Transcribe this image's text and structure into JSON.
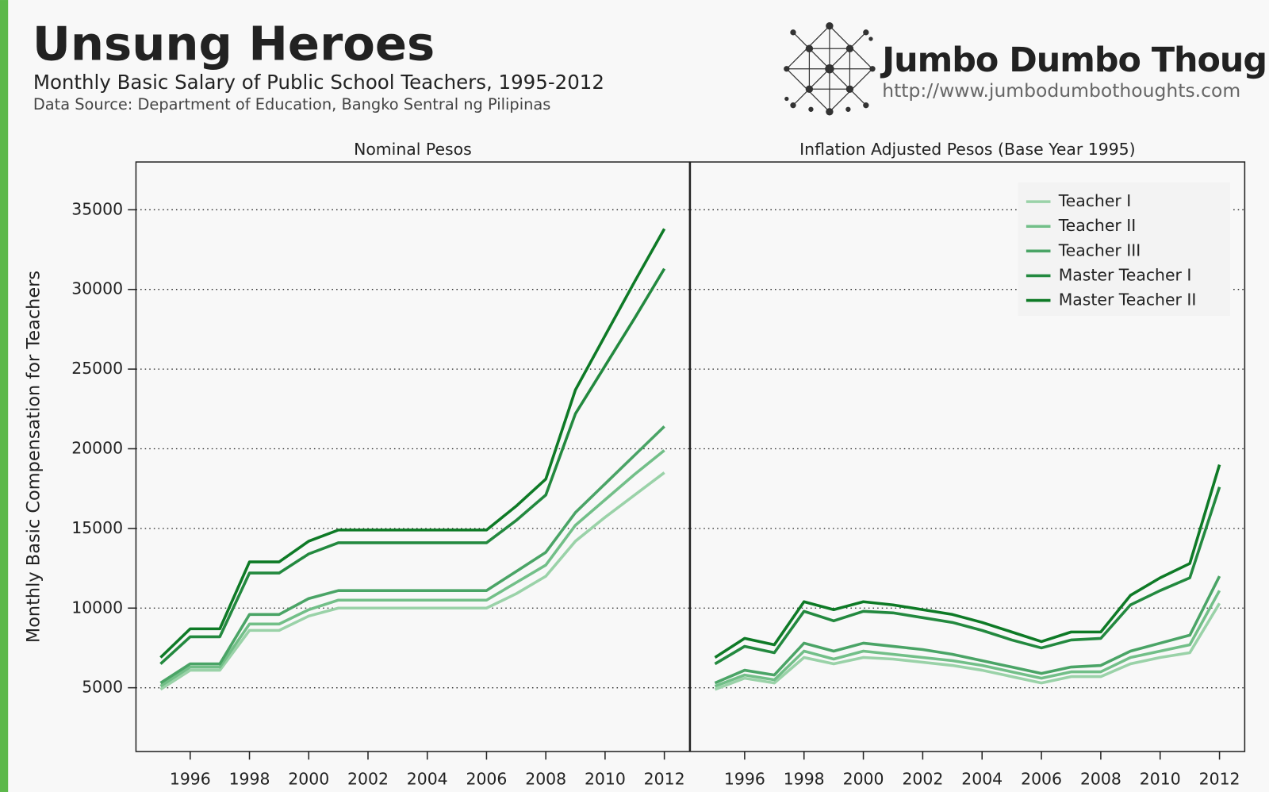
{
  "header": {
    "title": "Unsung Heroes",
    "subtitle": "Monthly Basic Salary of Public School Teachers, 1995-2012",
    "source": "Data Source: Department of Education, Bangko Sentral ng Pilipinas"
  },
  "logo": {
    "name": "Jumbo Dumbo Thoughts",
    "url": "http://www.jumbodumbothoughts.com"
  },
  "chart_data": [
    {
      "type": "line",
      "title": "Nominal Pesos",
      "y_label": "Monthly Basic Compensation for Teachers",
      "x": [
        1995,
        1996,
        1997,
        1998,
        1999,
        2000,
        2001,
        2002,
        2003,
        2004,
        2005,
        2006,
        2007,
        2008,
        2009,
        2010,
        2011,
        2012
      ],
      "series": [
        {
          "name": "Teacher I",
          "color": "#9ad2a8",
          "values": [
            4900,
            6100,
            6100,
            8600,
            8600,
            9500,
            10000,
            10000,
            10000,
            10000,
            10000,
            10000,
            10900,
            12000,
            14200,
            15700,
            17100,
            18500
          ]
        },
        {
          "name": "Teacher II",
          "color": "#72bf88",
          "values": [
            5100,
            6300,
            6300,
            9000,
            9000,
            9900,
            10500,
            10500,
            10500,
            10500,
            10500,
            10500,
            11600,
            12700,
            15200,
            16800,
            18400,
            19900
          ]
        },
        {
          "name": "Teacher III",
          "color": "#4aa466",
          "values": [
            5300,
            6500,
            6500,
            9600,
            9600,
            10600,
            11100,
            11100,
            11100,
            11100,
            11100,
            11100,
            12300,
            13500,
            16000,
            17800,
            19600,
            21400
          ]
        },
        {
          "name": "Master Teacher I",
          "color": "#23893f",
          "values": [
            6500,
            8200,
            8200,
            12200,
            12200,
            13400,
            14100,
            14100,
            14100,
            14100,
            14100,
            14100,
            15500,
            17100,
            22200,
            25200,
            28200,
            31300
          ]
        },
        {
          "name": "Master Teacher II",
          "color": "#0e7a26",
          "values": [
            6900,
            8700,
            8700,
            12900,
            12900,
            14200,
            14900,
            14900,
            14900,
            14900,
            14900,
            14900,
            16400,
            18100,
            23700,
            27100,
            30500,
            33800
          ]
        }
      ],
      "xlim": [
        1994.17,
        2012.85
      ],
      "xticks": [
        1996,
        1998,
        2000,
        2002,
        2004,
        2006,
        2008,
        2010,
        2012
      ],
      "ylim": [
        1000,
        38000
      ],
      "yticks": [
        5000,
        10000,
        15000,
        20000,
        25000,
        30000,
        35000
      ],
      "grid": true
    },
    {
      "type": "line",
      "title": "Inflation Adjusted Pesos (Base Year 1995)",
      "x": [
        1995,
        1996,
        1997,
        1998,
        1999,
        2000,
        2001,
        2002,
        2003,
        2004,
        2005,
        2006,
        2007,
        2008,
        2009,
        2010,
        2011,
        2012
      ],
      "series": [
        {
          "name": "Teacher I",
          "color": "#9ad2a8",
          "values": [
            4900,
            5600,
            5300,
            6900,
            6500,
            6900,
            6800,
            6600,
            6400,
            6100,
            5700,
            5300,
            5700,
            5700,
            6500,
            6900,
            7200,
            10300
          ]
        },
        {
          "name": "Teacher II",
          "color": "#72bf88",
          "values": [
            5100,
            5800,
            5500,
            7300,
            6800,
            7300,
            7100,
            6900,
            6700,
            6400,
            6000,
            5600,
            6000,
            6000,
            6900,
            7300,
            7700,
            11100
          ]
        },
        {
          "name": "Teacher III",
          "color": "#4aa466",
          "values": [
            5300,
            6100,
            5800,
            7800,
            7300,
            7800,
            7600,
            7400,
            7100,
            6700,
            6300,
            5900,
            6300,
            6400,
            7300,
            7800,
            8300,
            12000
          ]
        },
        {
          "name": "Master Teacher I",
          "color": "#23893f",
          "values": [
            6500,
            7600,
            7200,
            9800,
            9200,
            9800,
            9700,
            9400,
            9100,
            8600,
            8000,
            7500,
            8000,
            8100,
            10200,
            11100,
            11900,
            17600
          ]
        },
        {
          "name": "Master Teacher II",
          "color": "#0e7a26",
          "values": [
            6900,
            8100,
            7700,
            10400,
            9900,
            10400,
            10200,
            9900,
            9600,
            9100,
            8500,
            7900,
            8500,
            8500,
            10800,
            11900,
            12800,
            19000
          ]
        }
      ],
      "xlim": [
        1994.17,
        2012.85
      ],
      "xticks": [
        1996,
        1998,
        2000,
        2002,
        2004,
        2006,
        2008,
        2010,
        2012
      ],
      "ylim": [
        1000,
        38000
      ],
      "yticks": [
        5000,
        10000,
        15000,
        20000,
        25000,
        30000,
        35000
      ],
      "grid": true,
      "legend": "top-right"
    }
  ]
}
